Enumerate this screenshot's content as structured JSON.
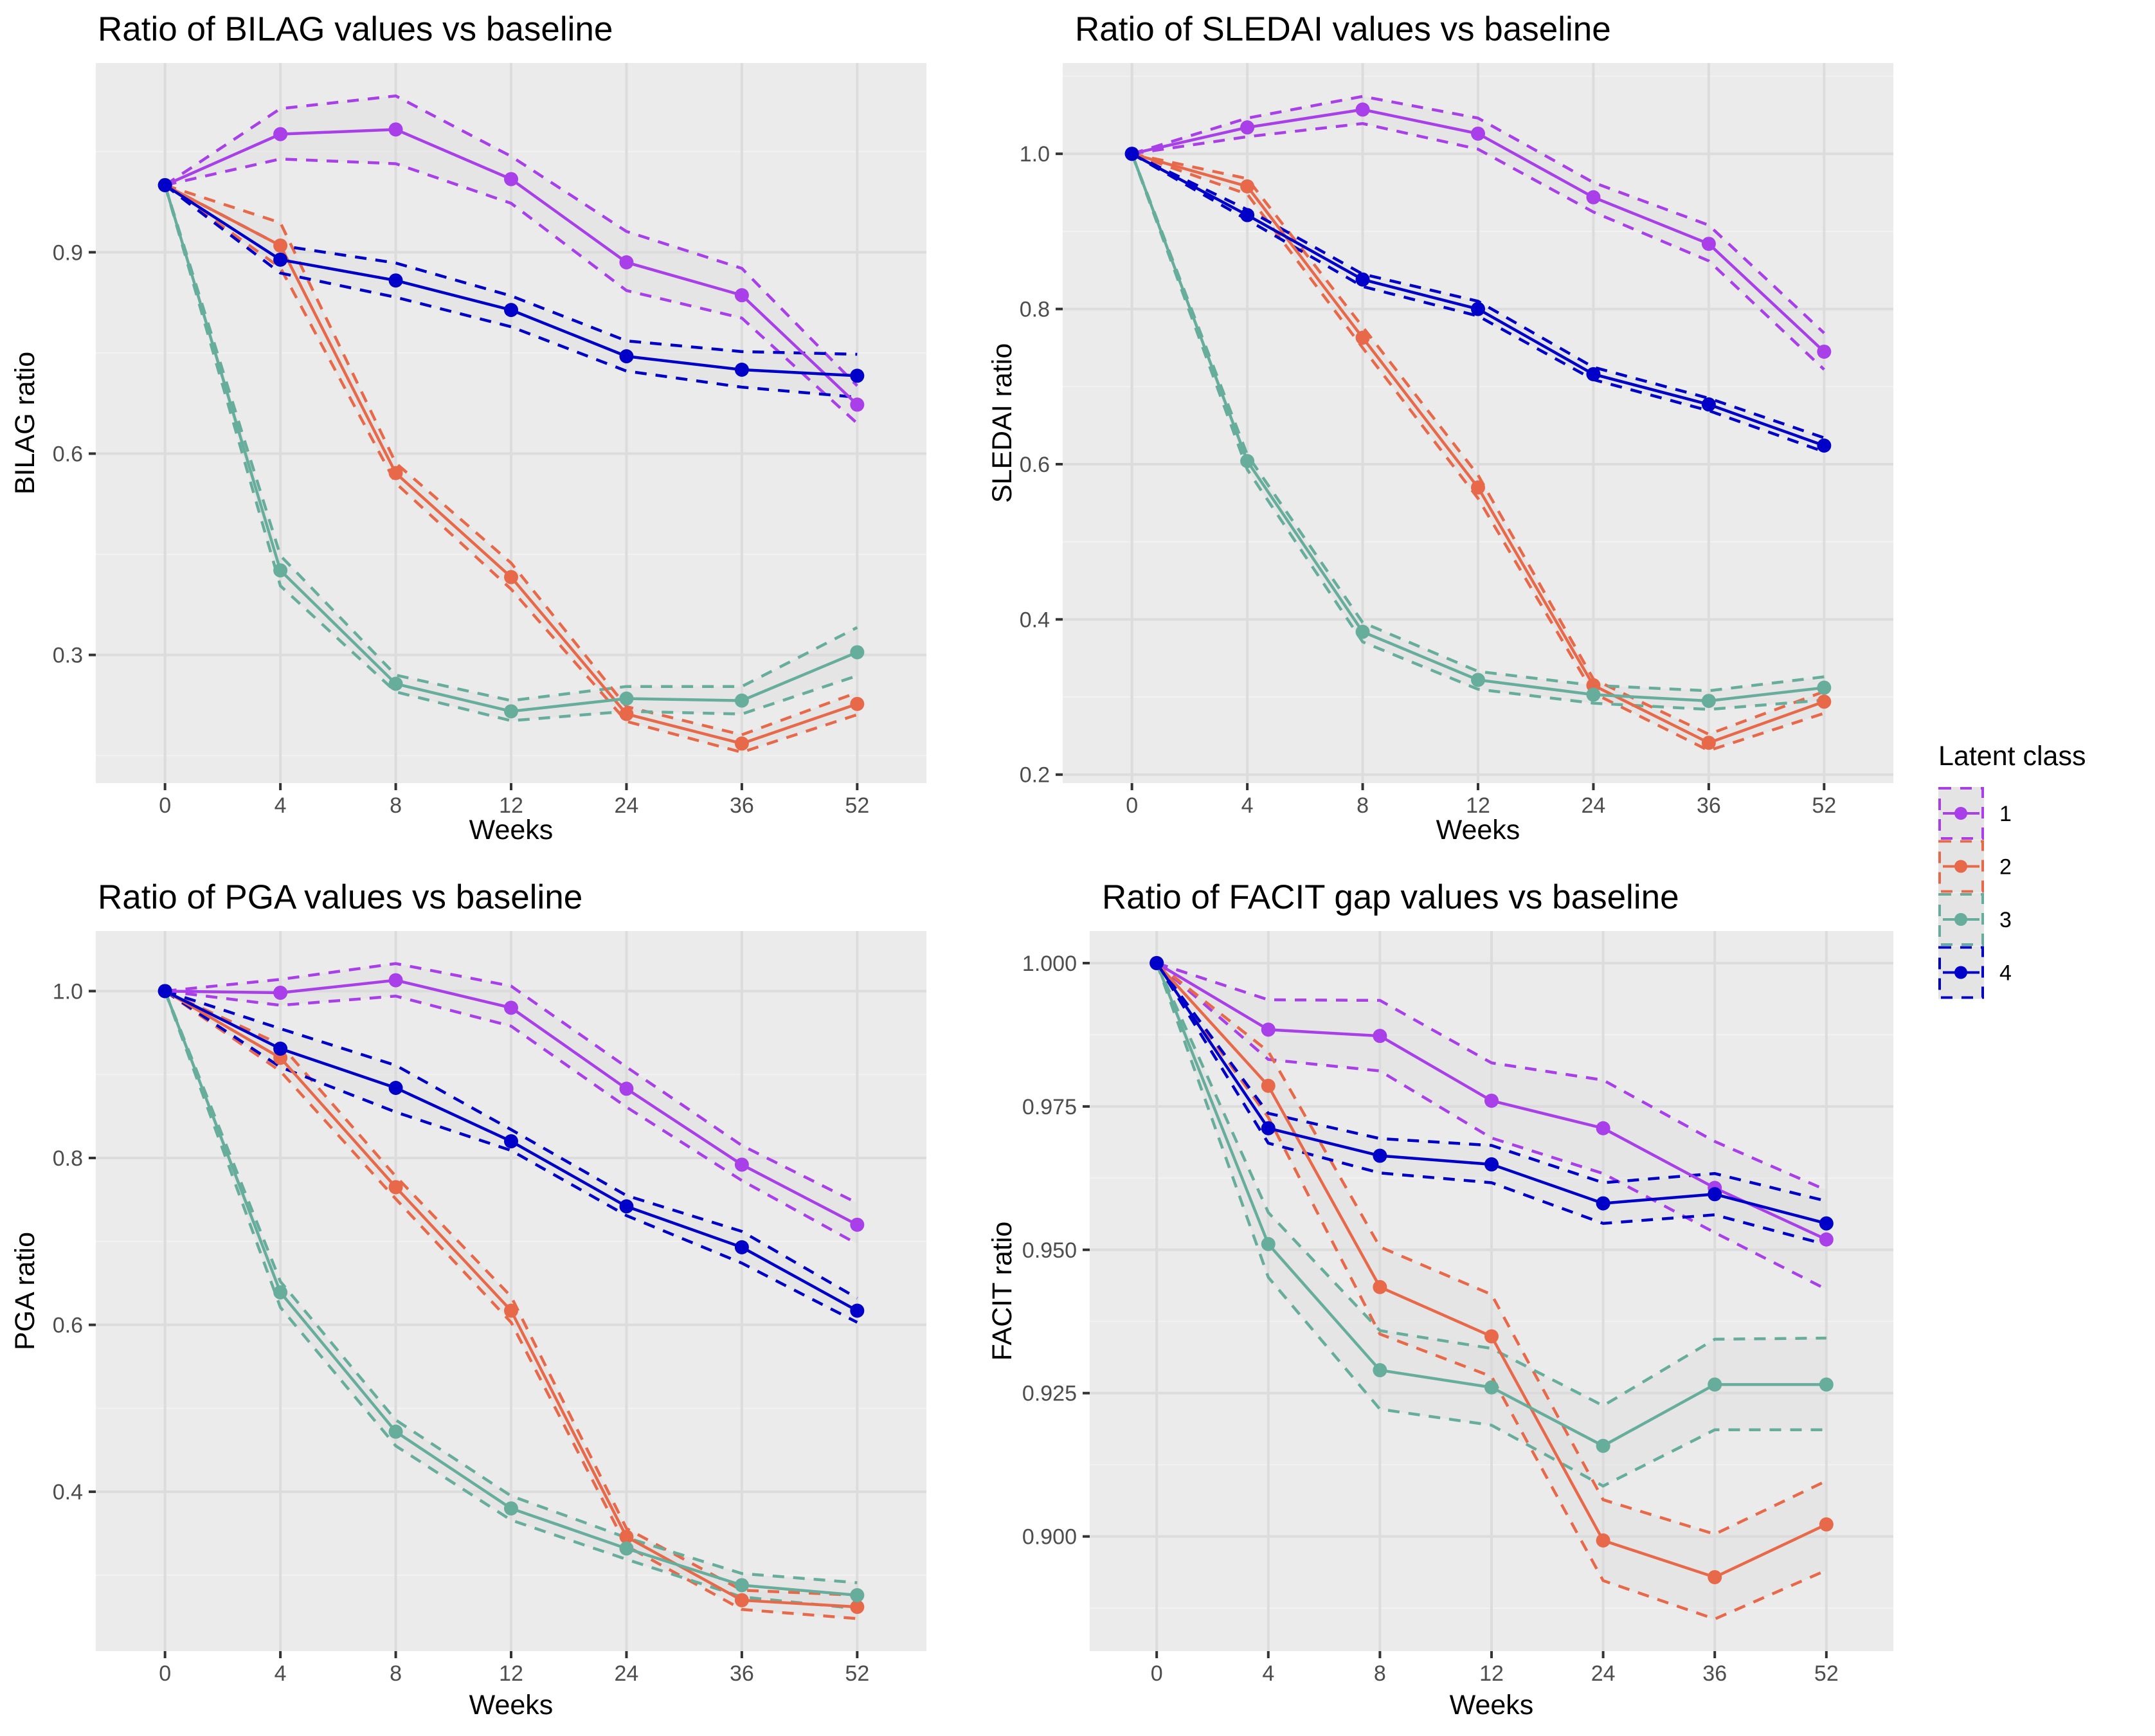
{
  "x_categories": [
    "0",
    "4",
    "8",
    "12",
    "24",
    "36",
    "52"
  ],
  "xlabel": "Weeks",
  "legend": {
    "title": "Latent class",
    "items": [
      {
        "label": "1",
        "color": "#A83FE8"
      },
      {
        "label": "2",
        "color": "#E8694A"
      },
      {
        "label": "3",
        "color": "#67AD9C"
      },
      {
        "label": "4",
        "color": "#0000C8"
      }
    ],
    "position": "right"
  },
  "chart_data": [
    {
      "type": "line",
      "title": "Ratio of BILAG values vs baseline",
      "xlabel": "Weeks",
      "ylabel": "BILAG ratio",
      "categories": [
        "0",
        "4",
        "8",
        "12",
        "24",
        "36",
        "52"
      ],
      "ylim": [
        0.109,
        1.182
      ],
      "yticks": [
        0.3,
        0.6,
        0.9
      ],
      "ytick_labels": [
        "0.3",
        "0.6",
        "0.9"
      ],
      "grid": true,
      "series": [
        {
          "name": "1",
          "values": [
            1.0,
            1.076,
            1.083,
            1.009,
            0.885,
            0.836,
            0.673
          ],
          "upper": [
            1.0,
            1.114,
            1.133,
            1.043,
            0.931,
            0.876,
            0.701
          ],
          "lower": [
            1.0,
            1.039,
            1.032,
            0.973,
            0.843,
            0.802,
            0.645
          ]
        },
        {
          "name": "2",
          "values": [
            1.0,
            0.91,
            0.571,
            0.416,
            0.212,
            0.168,
            0.227
          ],
          "upper": [
            1.0,
            0.944,
            0.586,
            0.437,
            0.223,
            0.181,
            0.244
          ],
          "lower": [
            1.0,
            0.877,
            0.556,
            0.398,
            0.201,
            0.155,
            0.211
          ]
        },
        {
          "name": "3",
          "values": [
            1.0,
            0.426,
            0.257,
            0.216,
            0.235,
            0.232,
            0.304
          ],
          "upper": [
            1.0,
            0.448,
            0.27,
            0.232,
            0.253,
            0.253,
            0.341
          ],
          "lower": [
            1.0,
            0.403,
            0.245,
            0.202,
            0.216,
            0.212,
            0.269
          ]
        },
        {
          "name": "4",
          "values": [
            1.0,
            0.889,
            0.858,
            0.814,
            0.745,
            0.725,
            0.716
          ],
          "upper": [
            1.0,
            0.91,
            0.884,
            0.835,
            0.768,
            0.752,
            0.748
          ],
          "lower": [
            1.0,
            0.869,
            0.833,
            0.789,
            0.723,
            0.699,
            0.684
          ]
        }
      ]
    },
    {
      "type": "line",
      "title": "Ratio of SLEDAI values vs baseline",
      "xlabel": "Weeks",
      "ylabel": "SLEDAI ratio",
      "categories": [
        "0",
        "4",
        "8",
        "12",
        "24",
        "36",
        "52"
      ],
      "ylim": [
        0.189,
        1.117
      ],
      "yticks": [
        0.2,
        0.4,
        0.6,
        0.8,
        1.0
      ],
      "ytick_labels": [
        "0.2",
        "0.4",
        "0.6",
        "0.8",
        "1.0"
      ],
      "grid": true,
      "series": [
        {
          "name": "1",
          "values": [
            1.0,
            1.034,
            1.057,
            1.026,
            0.944,
            0.884,
            0.745
          ],
          "upper": [
            1.0,
            1.046,
            1.074,
            1.046,
            0.963,
            0.908,
            0.769
          ],
          "lower": [
            1.0,
            1.022,
            1.039,
            1.006,
            0.925,
            0.862,
            0.722
          ]
        },
        {
          "name": "2",
          "values": [
            1.0,
            0.958,
            0.763,
            0.57,
            0.315,
            0.241,
            0.294
          ],
          "upper": [
            1.0,
            0.968,
            0.777,
            0.586,
            0.323,
            0.252,
            0.307
          ],
          "lower": [
            1.0,
            0.948,
            0.75,
            0.556,
            0.305,
            0.231,
            0.279
          ]
        },
        {
          "name": "3",
          "values": [
            1.0,
            0.604,
            0.384,
            0.322,
            0.303,
            0.295,
            0.312
          ],
          "upper": [
            1.0,
            0.612,
            0.396,
            0.333,
            0.315,
            0.308,
            0.326
          ],
          "lower": [
            1.0,
            0.593,
            0.371,
            0.31,
            0.292,
            0.284,
            0.296
          ]
        },
        {
          "name": "4",
          "values": [
            1.0,
            0.921,
            0.838,
            0.8,
            0.716,
            0.677,
            0.624
          ],
          "upper": [
            1.0,
            0.928,
            0.845,
            0.81,
            0.725,
            0.685,
            0.634
          ],
          "lower": [
            1.0,
            0.915,
            0.829,
            0.791,
            0.709,
            0.669,
            0.616
          ]
        }
      ]
    },
    {
      "type": "line",
      "title": "Ratio of PGA values vs baseline",
      "xlabel": "Weeks",
      "ylabel": "PGA ratio",
      "categories": [
        "0",
        "4",
        "8",
        "12",
        "24",
        "36",
        "52"
      ],
      "ylim": [
        0.209,
        1.072
      ],
      "yticks": [
        0.4,
        0.6,
        0.8,
        1.0
      ],
      "ytick_labels": [
        "0.4",
        "0.6",
        "0.8",
        "1.0"
      ],
      "grid": true,
      "series": [
        {
          "name": "1",
          "values": [
            1.0,
            0.998,
            1.013,
            0.98,
            0.883,
            0.792,
            0.72
          ],
          "upper": [
            1.0,
            1.014,
            1.033,
            1.006,
            0.909,
            0.815,
            0.746
          ],
          "lower": [
            1.0,
            0.983,
            0.994,
            0.958,
            0.861,
            0.773,
            0.697
          ]
        },
        {
          "name": "2",
          "values": [
            1.0,
            0.92,
            0.765,
            0.617,
            0.346,
            0.27,
            0.262
          ],
          "upper": [
            1.0,
            0.936,
            0.778,
            0.634,
            0.356,
            0.282,
            0.276
          ],
          "lower": [
            1.0,
            0.904,
            0.751,
            0.603,
            0.335,
            0.259,
            0.248
          ]
        },
        {
          "name": "3",
          "values": [
            1.0,
            0.639,
            0.472,
            0.38,
            0.332,
            0.288,
            0.276
          ],
          "upper": [
            1.0,
            0.652,
            0.486,
            0.395,
            0.345,
            0.302,
            0.291
          ],
          "lower": [
            1.0,
            0.621,
            0.455,
            0.366,
            0.319,
            0.274,
            0.26
          ]
        },
        {
          "name": "4",
          "values": [
            1.0,
            0.931,
            0.884,
            0.82,
            0.742,
            0.693,
            0.617
          ],
          "upper": [
            1.0,
            0.955,
            0.911,
            0.834,
            0.755,
            0.712,
            0.632
          ],
          "lower": [
            1.0,
            0.909,
            0.855,
            0.809,
            0.731,
            0.674,
            0.603
          ]
        }
      ]
    },
    {
      "type": "line",
      "title": "Ratio of FACIT gap values vs baseline",
      "xlabel": "Weeks",
      "ylabel": "FACIT ratio",
      "categories": [
        "0",
        "4",
        "8",
        "12",
        "24",
        "36",
        "52"
      ],
      "ylim": [
        0.88,
        1.0056
      ],
      "yticks": [
        0.9,
        0.925,
        0.95,
        0.975,
        1.0
      ],
      "ytick_labels": [
        "0.900",
        "0.925",
        "0.950",
        "0.975",
        "1.000"
      ],
      "grid": true,
      "series": [
        {
          "name": "1",
          "values": [
            1.0,
            0.9884,
            0.9873,
            0.976,
            0.9712,
            0.9608,
            0.9518
          ],
          "upper": [
            1.0,
            0.9936,
            0.9935,
            0.9826,
            0.9796,
            0.9689,
            0.9604
          ],
          "lower": [
            1.0,
            0.9832,
            0.9812,
            0.9695,
            0.9633,
            0.953,
            0.9431
          ]
        },
        {
          "name": "2",
          "values": [
            1.0,
            0.9786,
            0.9435,
            0.9349,
            0.8993,
            0.8929,
            0.9021
          ],
          "upper": [
            1.0,
            0.9846,
            0.9505,
            0.9422,
            0.9064,
            0.9004,
            0.9097
          ],
          "lower": [
            1.0,
            0.9731,
            0.9353,
            0.9279,
            0.8923,
            0.8856,
            0.8941
          ]
        },
        {
          "name": "3",
          "values": [
            1.0,
            0.951,
            0.929,
            0.926,
            0.9158,
            0.9265,
            0.9265
          ],
          "upper": [
            1.0,
            0.9565,
            0.9359,
            0.9328,
            0.9228,
            0.9344,
            0.9346
          ],
          "lower": [
            1.0,
            0.9452,
            0.9222,
            0.9194,
            0.9088,
            0.9186,
            0.9186
          ]
        },
        {
          "name": "4",
          "values": [
            1.0,
            0.9712,
            0.9664,
            0.9649,
            0.9581,
            0.9597,
            0.9546
          ],
          "upper": [
            1.0,
            0.9738,
            0.9694,
            0.9682,
            0.9617,
            0.9633,
            0.9585
          ],
          "lower": [
            1.0,
            0.9686,
            0.9634,
            0.9617,
            0.9546,
            0.9561,
            0.9509
          ]
        }
      ]
    }
  ]
}
